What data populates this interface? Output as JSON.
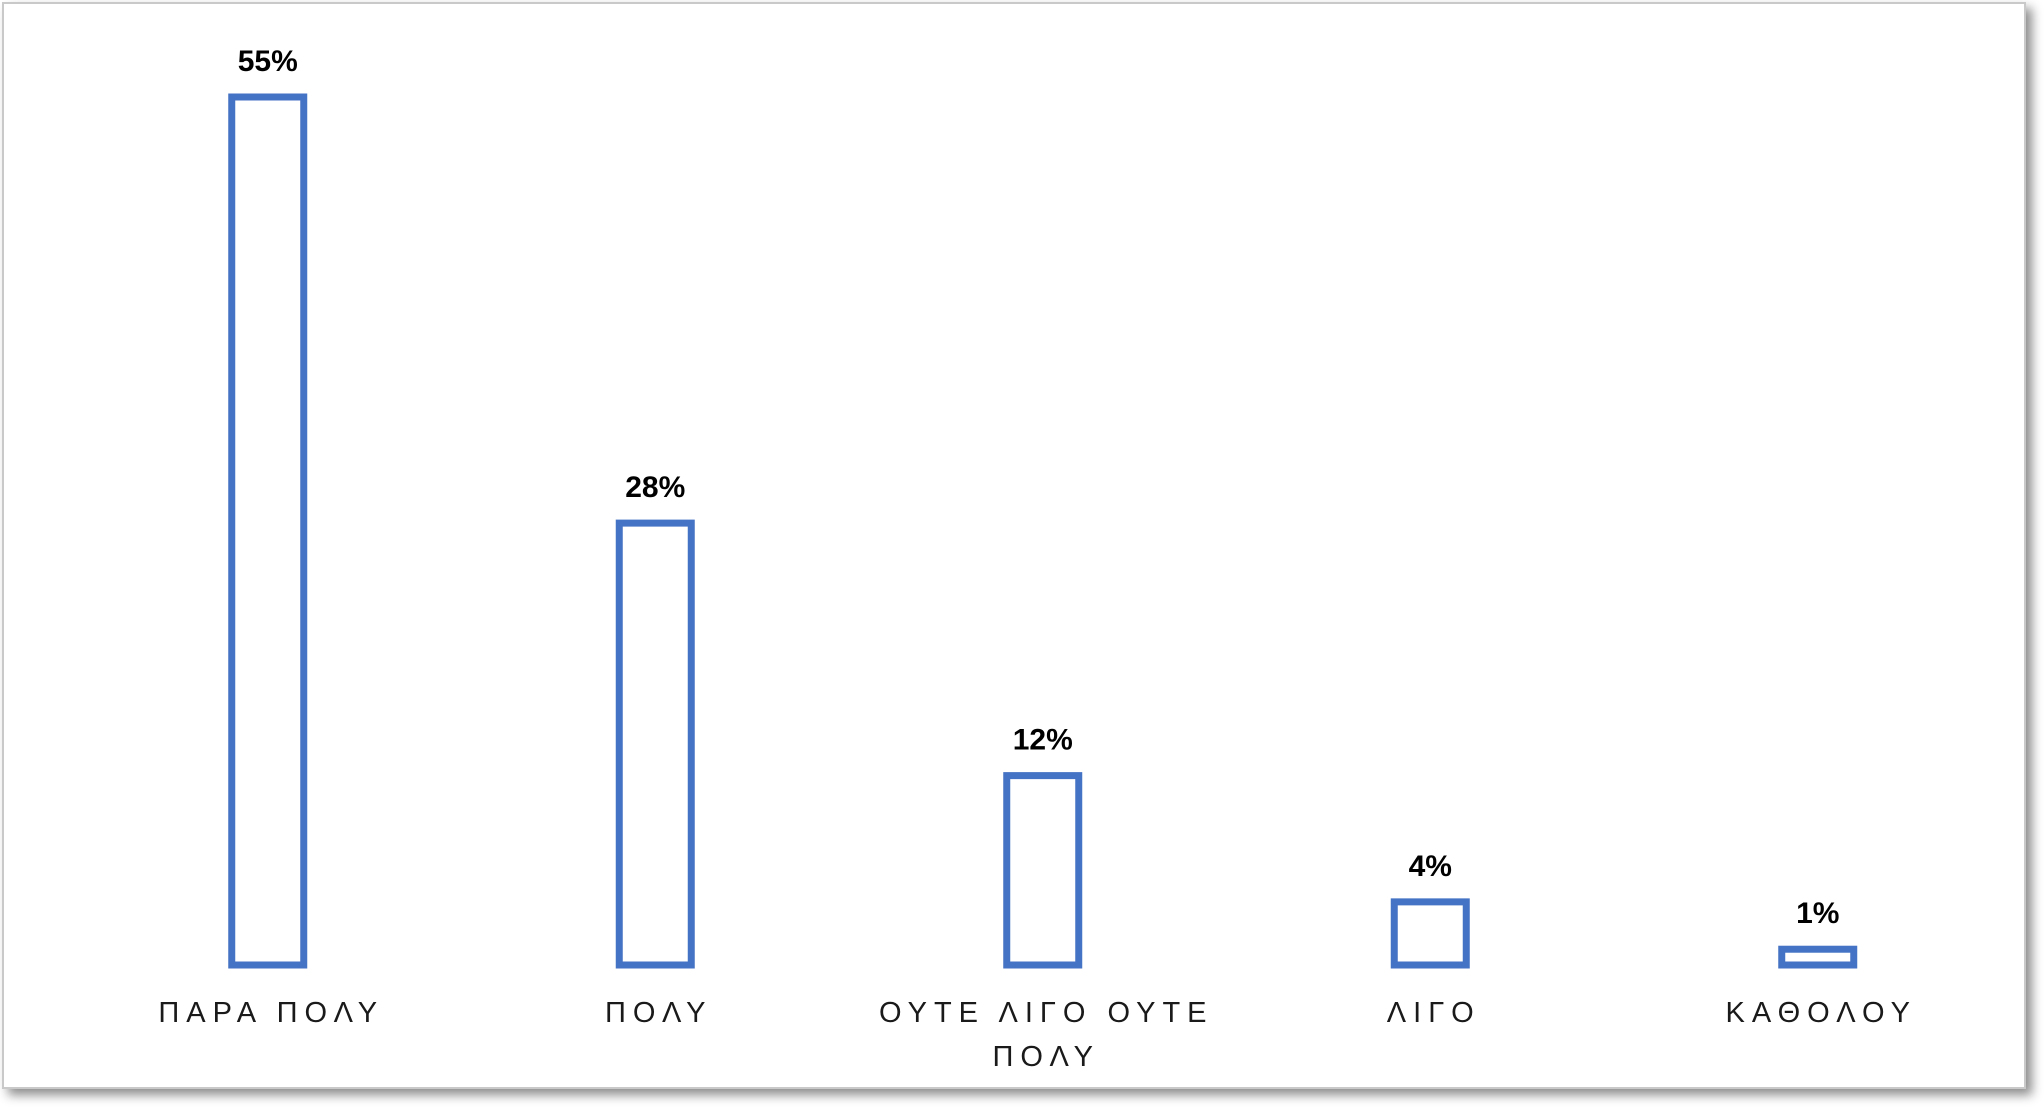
{
  "chart_data": {
    "type": "bar",
    "title": "",
    "xlabel": "",
    "ylabel": "",
    "categories": [
      [
        "ΠΑΡΑ ΠΟΛΥ"
      ],
      [
        "ΠΟΛΥ"
      ],
      [
        "ΟΥΤΕ ΛΙΓΟ ΟΥΤΕ",
        "ΠΟΛΥ"
      ],
      [
        "ΛΙΓΟ"
      ],
      [
        "ΚΑΘΟΛΟΥ"
      ]
    ],
    "values": [
      55,
      28,
      12,
      4,
      1
    ],
    "data_labels": [
      "55%",
      "28%",
      "12%",
      "4%",
      "1%"
    ],
    "ylim": [
      0,
      55
    ],
    "grid": false,
    "legend": "none",
    "colors": {
      "bar_outline": "#4472c4",
      "bar_fill": "#ffffff",
      "frame_border": "#c9c9c9"
    }
  }
}
